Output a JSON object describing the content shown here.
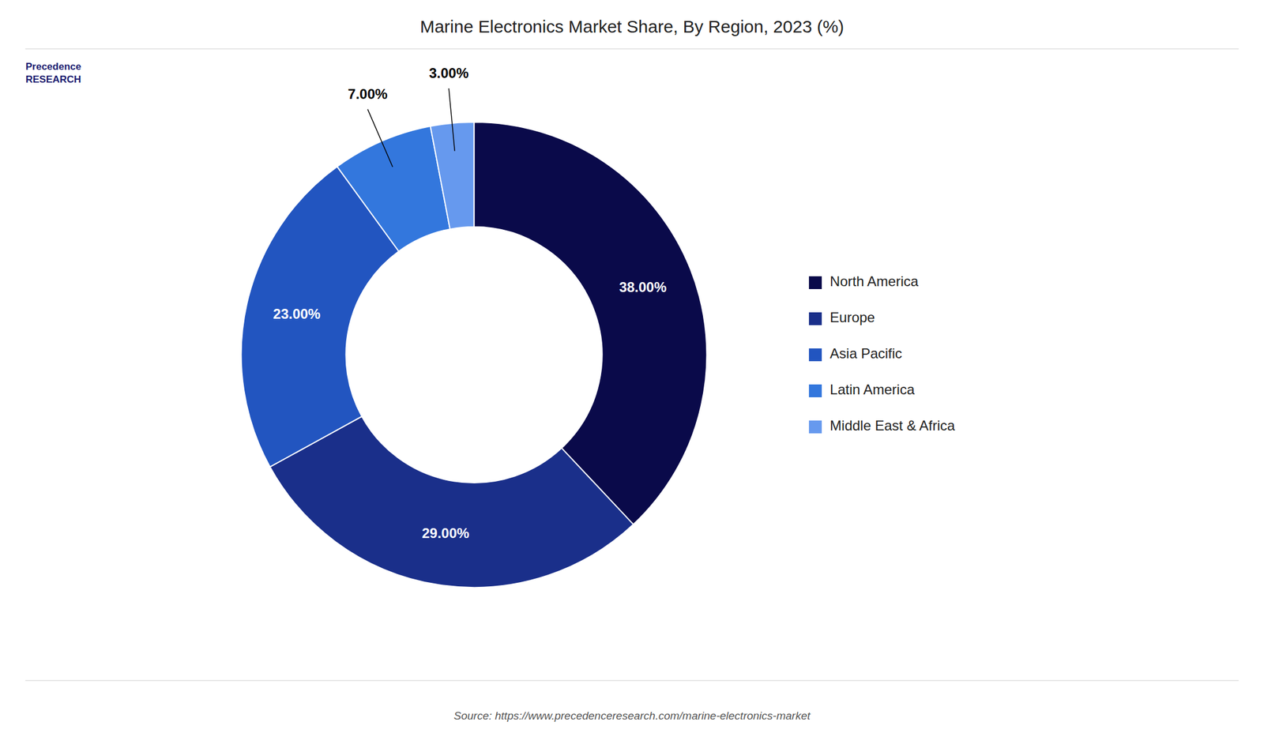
{
  "chart_data": {
    "type": "pie",
    "title": "Marine Electronics Market Share, By Region, 2023 (%)",
    "categories": [
      "North America",
      "Europe",
      "Asia Pacific",
      "Latin America",
      "Middle East & Africa"
    ],
    "values": [
      38.0,
      29.0,
      23.0,
      7.0,
      3.0
    ],
    "value_labels": [
      "38.00%",
      "29.00%",
      "23.00%",
      "7.00%",
      "3.00%"
    ],
    "colors": [
      "#0a0a4a",
      "#1a2f8a",
      "#2255c0",
      "#3377dd",
      "#6699ee"
    ],
    "data_labels": true,
    "legend": "right",
    "annotations": [
      "Precedence",
      "RESEARCH",
      "Source: https://www.precedenceresearch.com/marine-electronics-market"
    ]
  }
}
